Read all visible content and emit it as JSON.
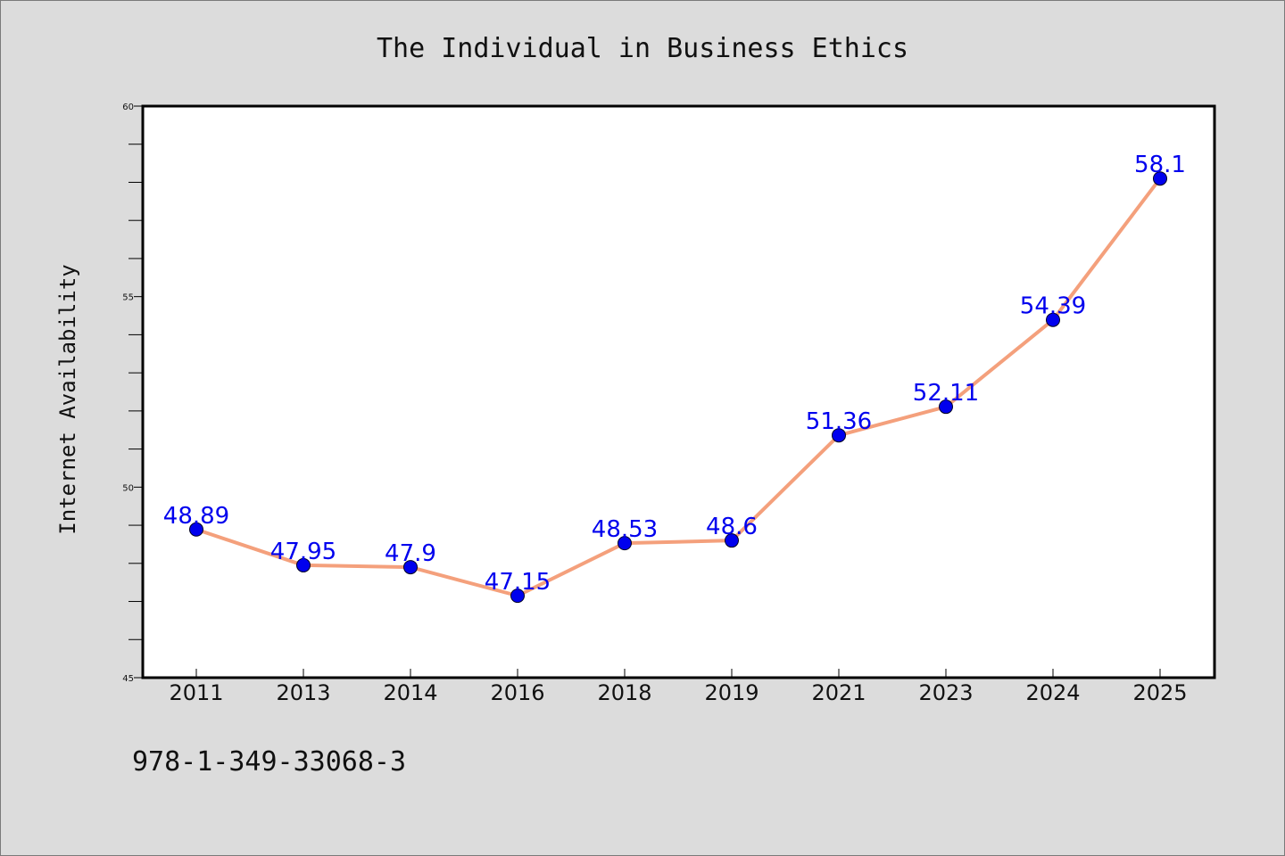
{
  "chart_data": {
    "type": "line",
    "title": "The Individual in Business Ethics",
    "xlabel": "",
    "ylabel": "Internet Availability",
    "categories": [
      "2011",
      "2013",
      "2014",
      "2016",
      "2018",
      "2019",
      "2021",
      "2023",
      "2024",
      "2025"
    ],
    "values": [
      48.89,
      47.95,
      47.9,
      47.15,
      48.53,
      48.6,
      51.36,
      52.11,
      54.39,
      58.1
    ],
    "data_labels": [
      "48.89",
      "47.95",
      "47.9",
      "47.15",
      "48.53",
      "48.6",
      "51.36",
      "52.11",
      "54.39",
      "58.1"
    ],
    "ylim": [
      45,
      60
    ],
    "yticks": [
      "45",
      "50",
      "55",
      "60"
    ],
    "grid": false,
    "line_color": "#f4a07c",
    "marker_color": "#0000ee",
    "label_color": "#0000ee"
  },
  "footer": {
    "isbn": "978-1-349-33068-3"
  }
}
